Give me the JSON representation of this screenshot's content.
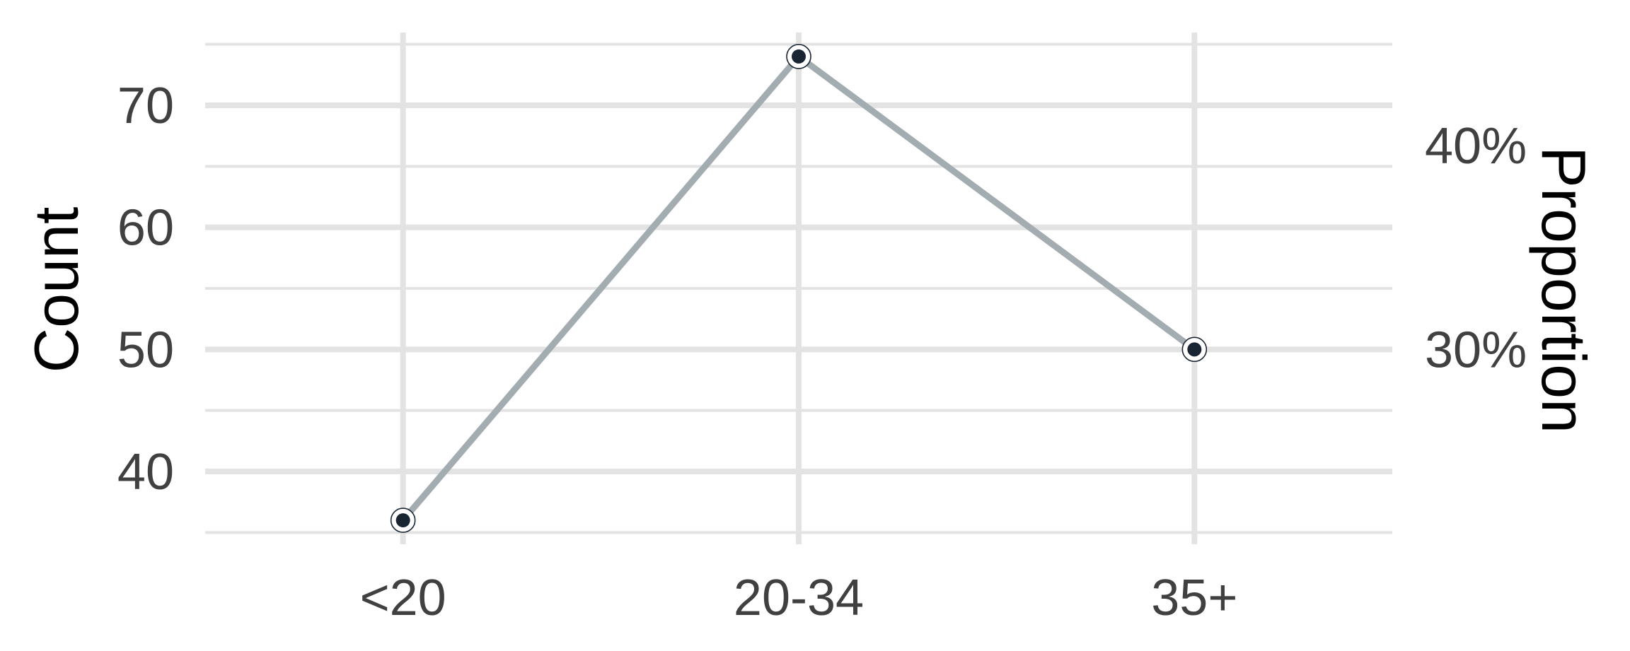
{
  "chart_data": {
    "type": "line",
    "categories": [
      "<20",
      "20-34",
      "35+"
    ],
    "series": [
      {
        "values": [
          36,
          74,
          50
        ]
      }
    ],
    "ylabel": "Count",
    "y2label": "Proportion",
    "ylim": [
      35,
      76
    ],
    "yticks": [
      40,
      50,
      60,
      70
    ],
    "yticks_labels": [
      "40",
      "50",
      "60",
      "70"
    ],
    "y2ticks": [
      50,
      66.7
    ],
    "y2ticks_labels": [
      "30%",
      "40%"
    ],
    "grid": true,
    "line_color": "#a2acb1",
    "point_color": "#1a2533",
    "grid_color": "#e3e3e3"
  }
}
